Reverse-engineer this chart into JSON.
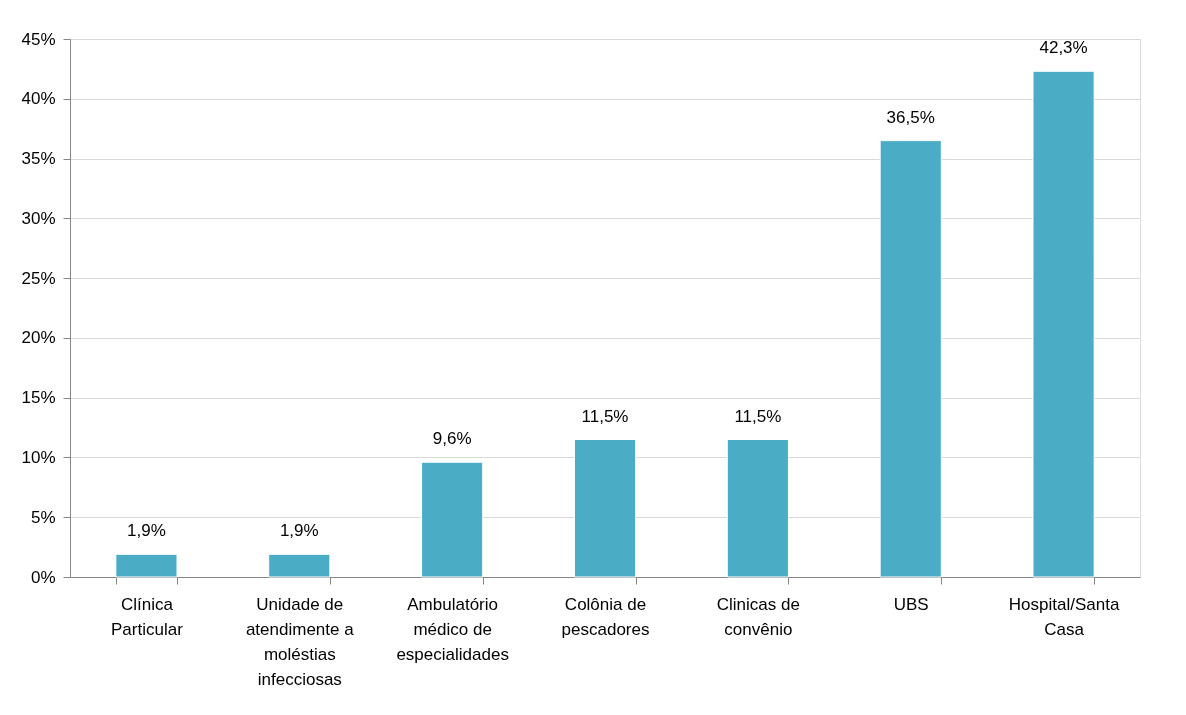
{
  "chart_data": {
    "type": "bar",
    "categories": [
      "Clínica Particular",
      "Unidade de atendimente a moléstias infecciosas",
      "Ambulatório médico de especialidades",
      "Colônia de pescadores",
      "Clinicas de convênio",
      "UBS",
      "Hospital/Santa Casa"
    ],
    "values": [
      1.9,
      1.9,
      9.6,
      11.5,
      11.5,
      36.5,
      42.3
    ],
    "value_labels": [
      "1,9%",
      "1,9%",
      "9,6%",
      "11,5%",
      "11,5%",
      "36,5%",
      "42,3%"
    ],
    "color": "#4bacc6",
    "ylim": [
      0,
      45
    ],
    "yticks": [
      {
        "value": 0,
        "label": "0%"
      },
      {
        "value": 5,
        "label": "5%"
      },
      {
        "value": 10,
        "label": "10%"
      },
      {
        "value": 15,
        "label": "15%"
      },
      {
        "value": 20,
        "label": "20%"
      },
      {
        "value": 25,
        "label": "25%"
      },
      {
        "value": 30,
        "label": "30%"
      },
      {
        "value": 35,
        "label": "35%"
      },
      {
        "value": 40,
        "label": "40%"
      },
      {
        "value": 45,
        "label": "45%"
      }
    ],
    "grid": "y"
  }
}
